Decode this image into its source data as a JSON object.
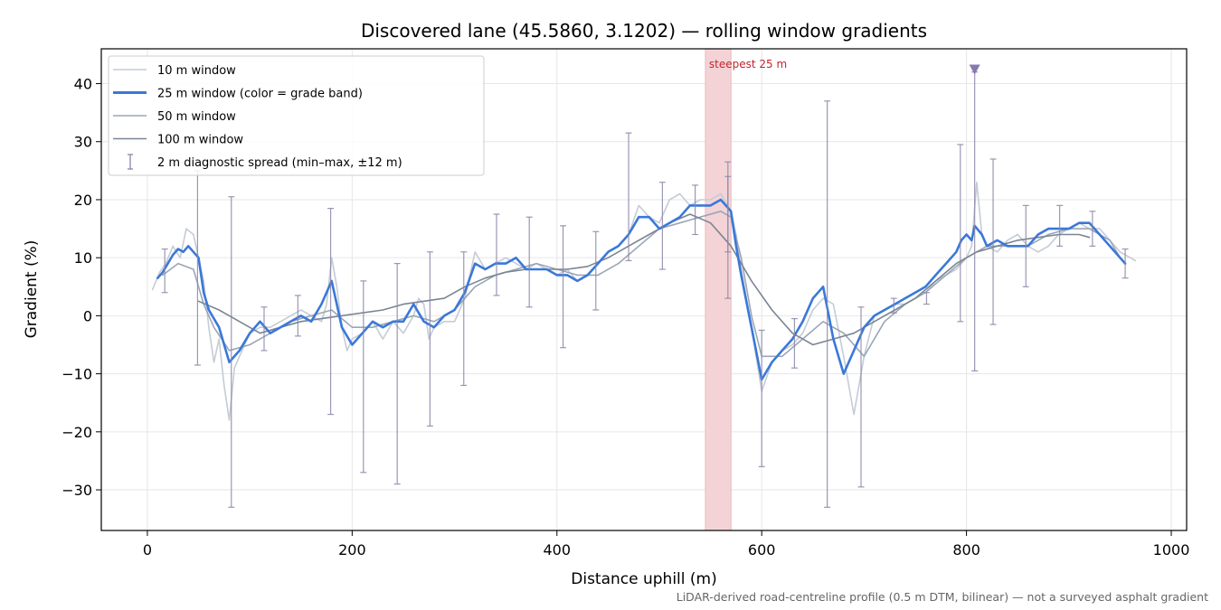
{
  "chart_data": {
    "type": "line",
    "title": "Discovered lane (45.5860, 3.1202) — rolling window gradients",
    "xlabel": "Distance uphill (m)",
    "ylabel": "Gradient (%)",
    "xlim": [
      -45,
      1015
    ],
    "ylim": [
      -37,
      46
    ],
    "xticks": [
      0,
      200,
      400,
      600,
      800,
      1000
    ],
    "yticks": [
      -30,
      -20,
      -10,
      0,
      10,
      20,
      30,
      40
    ],
    "xtick_labels": [
      "0",
      "200",
      "400",
      "600",
      "800",
      "1000"
    ],
    "ytick_labels": [
      "−30",
      "−20",
      "−10",
      "0",
      "10",
      "20",
      "30",
      "40"
    ],
    "grid": true,
    "legend_position": "top-left",
    "footnote": "LiDAR-derived road-centreline profile (0.5 m DTM, bilinear) — not a surveyed asphalt gradient",
    "highlight_band": {
      "x0": 545,
      "x1": 570,
      "label": "steepest 25 m",
      "color": "#f4d3d6"
    },
    "marker": {
      "x": 808,
      "y": 42.5,
      "color": "#8878b0"
    },
    "series": [
      {
        "name": "10 m window",
        "color": "#c4ccd6",
        "width": 1.6,
        "x": [
          5,
          12,
          18,
          25,
          32,
          38,
          45,
          50,
          55,
          60,
          65,
          70,
          75,
          80,
          85,
          90,
          95,
          100,
          110,
          120,
          130,
          140,
          150,
          160,
          170,
          175,
          180,
          185,
          190,
          195,
          200,
          210,
          220,
          230,
          240,
          250,
          260,
          265,
          270,
          275,
          280,
          290,
          300,
          310,
          320,
          330,
          340,
          350,
          360,
          370,
          380,
          390,
          400,
          410,
          420,
          430,
          440,
          450,
          460,
          470,
          480,
          490,
          500,
          510,
          520,
          530,
          540,
          550,
          560,
          570,
          575,
          580,
          590,
          600,
          610,
          620,
          630,
          640,
          650,
          660,
          670,
          680,
          690,
          700,
          710,
          720,
          730,
          740,
          750,
          760,
          770,
          780,
          790,
          800,
          805,
          810,
          815,
          820,
          830,
          840,
          850,
          860,
          870,
          880,
          890,
          900,
          910,
          920,
          930,
          940,
          950,
          960,
          965
        ],
        "y": [
          4.5,
          7.5,
          9,
          12,
          10,
          15,
          14,
          10,
          6,
          -2,
          -8,
          -4,
          -12,
          -18,
          -9,
          -7,
          -5,
          -3,
          -2,
          -2,
          -1,
          0,
          1,
          0,
          -1,
          2,
          10,
          5,
          -2,
          -6,
          -4,
          -3,
          -1,
          -4,
          -1,
          -3,
          0,
          3,
          2,
          -4,
          -2,
          -1,
          -1,
          3,
          11,
          8,
          9,
          10,
          9,
          8,
          9,
          8,
          7,
          8,
          6,
          7,
          9,
          11,
          12,
          14,
          19,
          17,
          16,
          20,
          21,
          19,
          20,
          20,
          21,
          18,
          14,
          8,
          -2,
          -13,
          -8,
          -6,
          -5,
          -3,
          1,
          3,
          2,
          -7,
          -17,
          -7,
          0,
          1,
          2,
          2,
          3,
          4,
          6,
          7,
          8,
          10,
          12,
          23,
          14,
          12,
          11,
          13,
          14,
          12,
          11,
          12,
          14,
          15,
          16,
          15,
          15,
          13,
          11,
          10,
          9.5
        ]
      },
      {
        "name": "25 m window (color = grade band)",
        "color": "#3a78d8",
        "width": 2.6,
        "x": [
          10,
          15,
          20,
          25,
          30,
          35,
          40,
          45,
          50,
          55,
          60,
          70,
          80,
          90,
          100,
          110,
          120,
          130,
          140,
          150,
          160,
          170,
          180,
          190,
          200,
          210,
          220,
          230,
          240,
          250,
          260,
          270,
          280,
          290,
          300,
          310,
          320,
          330,
          340,
          350,
          360,
          370,
          380,
          390,
          400,
          410,
          420,
          430,
          440,
          450,
          460,
          470,
          480,
          490,
          500,
          510,
          520,
          530,
          540,
          550,
          560,
          565,
          570,
          575,
          580,
          590,
          600,
          610,
          620,
          630,
          640,
          650,
          660,
          670,
          680,
          690,
          700,
          710,
          720,
          730,
          740,
          750,
          760,
          770,
          780,
          790,
          795,
          800,
          805,
          808,
          815,
          820,
          830,
          840,
          850,
          860,
          870,
          880,
          890,
          900,
          910,
          920,
          930,
          940,
          950,
          955
        ],
        "y": [
          6.5,
          7.5,
          9,
          10.5,
          11.5,
          11,
          12,
          11,
          10,
          4,
          1,
          -2,
          -8,
          -6,
          -3,
          -1,
          -3,
          -2,
          -1,
          0,
          -1,
          2,
          6,
          -2,
          -5,
          -3,
          -1,
          -2,
          -1,
          -1,
          2,
          -1,
          -2,
          0,
          1,
          4,
          9,
          8,
          9,
          9,
          10,
          8,
          8,
          8,
          7,
          7,
          6,
          7,
          9,
          11,
          12,
          14,
          17,
          17,
          15,
          16,
          17,
          19,
          19,
          19,
          20,
          19,
          18,
          12,
          7,
          -2,
          -11,
          -8,
          -6,
          -4,
          -1,
          3,
          5,
          -4,
          -10,
          -6,
          -2,
          0,
          1,
          2,
          3,
          4,
          5,
          7,
          9,
          11,
          13,
          14,
          13,
          15.5,
          14,
          12,
          13,
          12,
          12,
          12,
          14,
          15,
          15,
          15,
          16,
          16,
          14,
          12,
          10,
          9
        ]
      },
      {
        "name": "50 m window",
        "color": "#9aa6b6",
        "width": 1.6,
        "x": [
          15,
          30,
          45,
          55,
          65,
          80,
          100,
          120,
          140,
          160,
          180,
          200,
          220,
          240,
          260,
          280,
          300,
          320,
          340,
          360,
          380,
          400,
          420,
          440,
          460,
          480,
          500,
          520,
          540,
          560,
          570,
          580,
          590,
          600,
          620,
          640,
          660,
          680,
          700,
          720,
          740,
          760,
          780,
          800,
          820,
          840,
          860,
          880,
          900,
          920,
          940,
          950
        ],
        "y": [
          7,
          9,
          8,
          2,
          -2,
          -6,
          -5,
          -3,
          -1,
          0,
          1,
          -2,
          -2,
          -1,
          0,
          -1,
          1,
          5,
          7,
          8,
          9,
          8,
          7,
          7,
          9,
          12,
          15,
          16,
          17,
          18,
          17,
          10,
          0,
          -7,
          -7,
          -4,
          -1,
          -3,
          -7,
          -1,
          2,
          4,
          7,
          10,
          12,
          12,
          12,
          14,
          15,
          15,
          13,
          10
        ]
      },
      {
        "name": "100 m window",
        "color": "#7b8594",
        "width": 1.6,
        "x": [
          50,
          70,
          90,
          110,
          130,
          150,
          170,
          190,
          210,
          230,
          250,
          270,
          290,
          310,
          330,
          350,
          370,
          390,
          410,
          430,
          450,
          470,
          490,
          510,
          530,
          550,
          570,
          590,
          610,
          630,
          650,
          670,
          690,
          710,
          730,
          750,
          770,
          790,
          810,
          830,
          850,
          870,
          890,
          910,
          920
        ],
        "y": [
          2.5,
          1,
          -1,
          -3,
          -2,
          -1,
          -0.5,
          0,
          0.5,
          1,
          2,
          2.5,
          3,
          5,
          6.5,
          7.5,
          8,
          8,
          8,
          8.5,
          10,
          12,
          14,
          16,
          17.5,
          16,
          12,
          6,
          1,
          -3,
          -5,
          -4,
          -3,
          -1,
          1,
          3,
          6,
          9,
          11,
          12,
          13,
          13.5,
          14,
          14,
          13.5
        ]
      }
    ],
    "error_bars": {
      "name": "2 m diagnostic spread (min–max, ±12 m)",
      "color": "#8a86a8",
      "points": [
        {
          "x": 17,
          "low": 4,
          "high": 11.5
        },
        {
          "x": 49,
          "low": -8.5,
          "high": 25
        },
        {
          "x": 82,
          "low": -33,
          "high": 20.5
        },
        {
          "x": 114,
          "low": -6,
          "high": 1.5
        },
        {
          "x": 147,
          "low": -3.5,
          "high": 3.5
        },
        {
          "x": 179,
          "low": -17,
          "high": 18.5
        },
        {
          "x": 211,
          "low": -27,
          "high": 6
        },
        {
          "x": 244,
          "low": -29,
          "high": 9
        },
        {
          "x": 276,
          "low": -19,
          "high": 11
        },
        {
          "x": 309,
          "low": -12,
          "high": 11
        },
        {
          "x": 341,
          "low": 3.5,
          "high": 17.5
        },
        {
          "x": 373,
          "low": 1.5,
          "high": 17
        },
        {
          "x": 406,
          "low": -5.5,
          "high": 15.5
        },
        {
          "x": 438,
          "low": 1,
          "high": 14.5
        },
        {
          "x": 470,
          "low": 9.5,
          "high": 31.5
        },
        {
          "x": 503,
          "low": 8,
          "high": 23
        },
        {
          "x": 535,
          "low": 14,
          "high": 22.5
        },
        {
          "x": 567,
          "low": 11,
          "high": 24
        },
        {
          "x": 567,
          "low": 3,
          "high": 26.5
        },
        {
          "x": 600,
          "low": -26,
          "high": -2.5
        },
        {
          "x": 632,
          "low": -9,
          "high": -0.5
        },
        {
          "x": 664,
          "low": -33,
          "high": 37
        },
        {
          "x": 697,
          "low": -29.5,
          "high": 1.5
        },
        {
          "x": 729,
          "low": 0.5,
          "high": 3
        },
        {
          "x": 761,
          "low": 2,
          "high": 4
        },
        {
          "x": 794,
          "low": -1,
          "high": 29.5
        },
        {
          "x": 808,
          "low": -9.5,
          "high": 42
        },
        {
          "x": 826,
          "low": -1.5,
          "high": 27
        },
        {
          "x": 858,
          "low": 5,
          "high": 19
        },
        {
          "x": 891,
          "low": 12,
          "high": 19
        },
        {
          "x": 923,
          "low": 12,
          "high": 18
        },
        {
          "x": 955,
          "low": 6.5,
          "high": 11.5
        }
      ]
    }
  }
}
